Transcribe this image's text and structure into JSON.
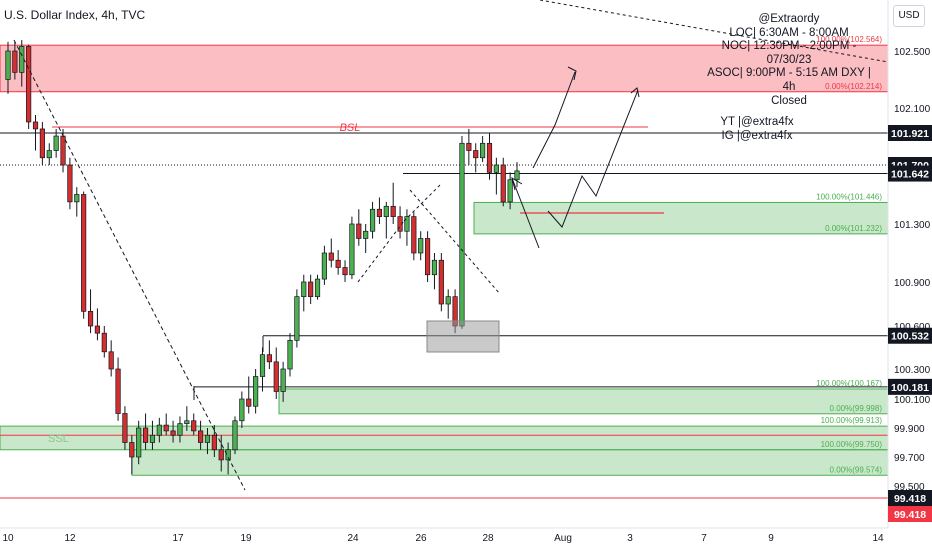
{
  "header": {
    "title": "U.S. Dollar Index, 4h, TVC"
  },
  "currency_button": "USD",
  "note": {
    "lines": [
      "@Extraordy",
      "LOC| 6:30AM - 8:00AM",
      "NOC| 12:30PM - 2:00PM - 07/30/23",
      "ASOC| 9:00PM - 5:15 AM  DXY | 4h",
      "Closed",
      "YT |@extra4fx",
      "IG |@extra4fx"
    ]
  },
  "chart_data": {
    "type": "candlestick",
    "title": "U.S. Dollar Index, 4h, TVC",
    "symbol": "DXY",
    "timeframe": "4h",
    "source": "TVC",
    "ylim": [
      99.35,
      102.95
    ],
    "y_ticks": [
      102.5,
      102.1,
      101.3,
      100.9,
      100.6,
      100.3,
      100.1,
      99.9,
      99.7,
      99.5
    ],
    "y_tick_labels": [
      "102.500",
      "102.100",
      "101.300",
      "100.900",
      "100.600",
      "100.300",
      "100.100",
      "99.900",
      "99.700",
      "99.500"
    ],
    "x_ticks": [
      "10",
      "12",
      "17",
      "19",
      "24",
      "26",
      "28",
      "Aug",
      "3",
      "7",
      "9",
      "14"
    ],
    "price_labels": [
      {
        "label": "101.921",
        "value": 101.921,
        "style": "dark"
      },
      {
        "label": "101.700",
        "value": 101.7,
        "style": "dark"
      },
      {
        "label": "101.642",
        "value": 101.642,
        "style": "dark"
      },
      {
        "label": "100.532",
        "value": 100.532,
        "style": "dark"
      },
      {
        "label": "100.181",
        "value": 100.181,
        "style": "dark"
      },
      {
        "label": "99.418",
        "value": 99.418,
        "style": "dark"
      },
      {
        "label": "99.418",
        "value": 99.418,
        "style": "red"
      }
    ],
    "zones": [
      {
        "kind": "supply",
        "top": 102.564,
        "bottom": 102.214,
        "top_label": "100.00%(102.564)",
        "bottom_label": "0.00%(102.214)"
      },
      {
        "kind": "demand",
        "top": 101.446,
        "bottom": 101.232,
        "top_label": "100.00%(101.446)",
        "bottom_label": "0.00%(101.232)"
      },
      {
        "kind": "demand",
        "top": 100.167,
        "bottom": 99.998,
        "top_label": "100.00%(100.167)",
        "bottom_label": "0.00%(99.998)"
      },
      {
        "kind": "demand",
        "top": 99.913,
        "bottom": 99.75,
        "top_label": "100.00%(99.913)",
        "bottom_label": "100.00%(99.750)"
      },
      {
        "kind": "demand",
        "top": 99.75,
        "bottom": 99.574,
        "top_label": "",
        "bottom_label": "0.00%(99.574)"
      }
    ],
    "annotations": {
      "bsl": "BSL",
      "ssl": "SSL"
    },
    "candles": [
      {
        "o": 102.3,
        "h": 102.6,
        "l": 102.2,
        "c": 102.5
      },
      {
        "o": 102.5,
        "h": 102.6,
        "l": 102.3,
        "c": 102.35
      },
      {
        "o": 102.35,
        "h": 102.62,
        "l": 102.25,
        "c": 102.55
      },
      {
        "o": 102.55,
        "h": 102.57,
        "l": 101.95,
        "c": 102.0
      },
      {
        "o": 102.0,
        "h": 102.05,
        "l": 101.8,
        "c": 101.95
      },
      {
        "o": 101.95,
        "h": 102.0,
        "l": 101.7,
        "c": 101.75
      },
      {
        "o": 101.75,
        "h": 101.85,
        "l": 101.7,
        "c": 101.8
      },
      {
        "o": 101.8,
        "h": 101.95,
        "l": 101.75,
        "c": 101.9
      },
      {
        "o": 101.9,
        "h": 101.95,
        "l": 101.65,
        "c": 101.7
      },
      {
        "o": 101.7,
        "h": 101.75,
        "l": 101.4,
        "c": 101.45
      },
      {
        "o": 101.45,
        "h": 101.55,
        "l": 101.35,
        "c": 101.5
      },
      {
        "o": 101.5,
        "h": 101.52,
        "l": 100.65,
        "c": 100.7
      },
      {
        "o": 100.7,
        "h": 100.85,
        "l": 100.55,
        "c": 100.6
      },
      {
        "o": 100.6,
        "h": 100.72,
        "l": 100.5,
        "c": 100.55
      },
      {
        "o": 100.55,
        "h": 100.6,
        "l": 100.38,
        "c": 100.42
      },
      {
        "o": 100.42,
        "h": 100.5,
        "l": 100.25,
        "c": 100.3
      },
      {
        "o": 100.3,
        "h": 100.38,
        "l": 99.95,
        "c": 100.0
      },
      {
        "o": 100.0,
        "h": 100.05,
        "l": 99.75,
        "c": 99.8
      },
      {
        "o": 99.8,
        "h": 99.85,
        "l": 99.58,
        "c": 99.7
      },
      {
        "o": 99.7,
        "h": 99.95,
        "l": 99.65,
        "c": 99.9
      },
      {
        "o": 99.9,
        "h": 100.0,
        "l": 99.75,
        "c": 99.8
      },
      {
        "o": 99.8,
        "h": 99.95,
        "l": 99.75,
        "c": 99.85
      },
      {
        "o": 99.85,
        "h": 99.97,
        "l": 99.8,
        "c": 99.92
      },
      {
        "o": 99.92,
        "h": 100.0,
        "l": 99.85,
        "c": 99.88
      },
      {
        "o": 99.88,
        "h": 99.95,
        "l": 99.8,
        "c": 99.85
      },
      {
        "o": 99.85,
        "h": 99.98,
        "l": 99.8,
        "c": 99.93
      },
      {
        "o": 99.93,
        "h": 100.05,
        "l": 99.88,
        "c": 99.95
      },
      {
        "o": 99.95,
        "h": 100.0,
        "l": 99.85,
        "c": 99.88
      },
      {
        "o": 99.88,
        "h": 99.95,
        "l": 99.75,
        "c": 99.8
      },
      {
        "o": 99.8,
        "h": 99.9,
        "l": 99.72,
        "c": 99.85
      },
      {
        "o": 99.85,
        "h": 99.92,
        "l": 99.7,
        "c": 99.75
      },
      {
        "o": 99.75,
        "h": 99.85,
        "l": 99.6,
        "c": 99.68
      },
      {
        "o": 99.68,
        "h": 99.8,
        "l": 99.58,
        "c": 99.75
      },
      {
        "o": 99.75,
        "h": 99.98,
        "l": 99.72,
        "c": 99.95
      },
      {
        "o": 99.95,
        "h": 100.15,
        "l": 99.9,
        "c": 100.1
      },
      {
        "o": 100.1,
        "h": 100.25,
        "l": 100.0,
        "c": 100.05
      },
      {
        "o": 100.05,
        "h": 100.3,
        "l": 100.0,
        "c": 100.25
      },
      {
        "o": 100.25,
        "h": 100.45,
        "l": 100.15,
        "c": 100.4
      },
      {
        "o": 100.4,
        "h": 100.5,
        "l": 100.3,
        "c": 100.35
      },
      {
        "o": 100.35,
        "h": 100.45,
        "l": 100.1,
        "c": 100.15
      },
      {
        "o": 100.15,
        "h": 100.35,
        "l": 100.08,
        "c": 100.3
      },
      {
        "o": 100.3,
        "h": 100.55,
        "l": 100.25,
        "c": 100.5
      },
      {
        "o": 100.5,
        "h": 100.85,
        "l": 100.45,
        "c": 100.8
      },
      {
        "o": 100.8,
        "h": 100.95,
        "l": 100.7,
        "c": 100.9
      },
      {
        "o": 100.9,
        "h": 100.95,
        "l": 100.75,
        "c": 100.8
      },
      {
        "o": 100.8,
        "h": 100.95,
        "l": 100.78,
        "c": 100.92
      },
      {
        "o": 100.92,
        "h": 101.15,
        "l": 100.88,
        "c": 101.1
      },
      {
        "o": 101.1,
        "h": 101.2,
        "l": 101.0,
        "c": 101.05
      },
      {
        "o": 101.05,
        "h": 101.12,
        "l": 100.95,
        "c": 101.0
      },
      {
        "o": 101.0,
        "h": 101.05,
        "l": 100.9,
        "c": 100.95
      },
      {
        "o": 100.95,
        "h": 101.35,
        "l": 100.92,
        "c": 101.3
      },
      {
        "o": 101.3,
        "h": 101.4,
        "l": 101.15,
        "c": 101.2
      },
      {
        "o": 101.2,
        "h": 101.3,
        "l": 101.1,
        "c": 101.25
      },
      {
        "o": 101.25,
        "h": 101.45,
        "l": 101.2,
        "c": 101.4
      },
      {
        "o": 101.4,
        "h": 101.48,
        "l": 101.3,
        "c": 101.35
      },
      {
        "o": 101.35,
        "h": 101.45,
        "l": 101.2,
        "c": 101.42
      },
      {
        "o": 101.42,
        "h": 101.58,
        "l": 101.3,
        "c": 101.35
      },
      {
        "o": 101.35,
        "h": 101.42,
        "l": 101.2,
        "c": 101.25
      },
      {
        "o": 101.25,
        "h": 101.4,
        "l": 101.15,
        "c": 101.35
      },
      {
        "o": 101.35,
        "h": 101.38,
        "l": 101.05,
        "c": 101.1
      },
      {
        "o": 101.1,
        "h": 101.25,
        "l": 101.05,
        "c": 101.2
      },
      {
        "o": 101.2,
        "h": 101.25,
        "l": 100.9,
        "c": 100.95
      },
      {
        "o": 100.95,
        "h": 101.1,
        "l": 100.85,
        "c": 101.05
      },
      {
        "o": 101.05,
        "h": 101.1,
        "l": 100.7,
        "c": 100.75
      },
      {
        "o": 100.75,
        "h": 100.85,
        "l": 100.65,
        "c": 100.8
      },
      {
        "o": 100.8,
        "h": 100.85,
        "l": 100.55,
        "c": 100.6
      },
      {
        "o": 100.6,
        "h": 101.9,
        "l": 100.58,
        "c": 101.85
      },
      {
        "o": 101.85,
        "h": 101.95,
        "l": 101.7,
        "c": 101.8
      },
      {
        "o": 101.8,
        "h": 101.85,
        "l": 101.65,
        "c": 101.75
      },
      {
        "o": 101.75,
        "h": 101.9,
        "l": 101.72,
        "c": 101.85
      },
      {
        "o": 101.85,
        "h": 101.92,
        "l": 101.6,
        "c": 101.65
      },
      {
        "o": 101.65,
        "h": 101.75,
        "l": 101.5,
        "c": 101.7
      },
      {
        "o": 101.7,
        "h": 101.75,
        "l": 101.42,
        "c": 101.45
      },
      {
        "o": 101.45,
        "h": 101.65,
        "l": 101.4,
        "c": 101.6
      },
      {
        "o": 101.6,
        "h": 101.72,
        "l": 101.55,
        "c": 101.66
      }
    ]
  }
}
